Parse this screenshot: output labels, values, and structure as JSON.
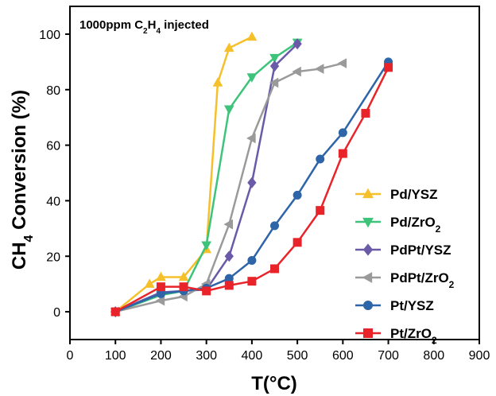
{
  "chart_data": {
    "type": "line",
    "title": "",
    "annotation": {
      "prefix": "1000ppm C",
      "sub": "2",
      "middle": "H",
      "sub2": "4",
      "suffix": " injected"
    },
    "xlabel": "T(°C)",
    "ylabel": {
      "prefix": "CH",
      "sub": "4",
      "suffix": " Conversion (%)"
    },
    "xlim": [
      0,
      900
    ],
    "ylim": [
      -10,
      110
    ],
    "xticks": [
      0,
      100,
      200,
      300,
      400,
      500,
      600,
      700,
      800,
      900
    ],
    "yticks": [
      0,
      20,
      40,
      60,
      80,
      100
    ],
    "grid": false,
    "legend_position": "right",
    "series": [
      {
        "name": "Pd/YSZ",
        "name_main": "Pd/YSZ",
        "name_sub": "",
        "name_after": "",
        "color": "#f5c02a",
        "marker": "triangle-up",
        "x": [
          100,
          175,
          200,
          250,
          300,
          325,
          350,
          400
        ],
        "y": [
          0,
          10,
          12.5,
          12.5,
          22.5,
          82.5,
          95,
          99
        ]
      },
      {
        "name": "Pd/ZrO2",
        "name_main": "Pd/ZrO",
        "name_sub": "2",
        "name_after": "",
        "color": "#3ec47a",
        "marker": "triangle-down",
        "x": [
          100,
          200,
          250,
          300,
          350,
          400,
          450,
          500
        ],
        "y": [
          0,
          6,
          7.5,
          24,
          73,
          84.5,
          91.5,
          97
        ]
      },
      {
        "name": "PdPt/YSZ",
        "name_main": "PdPt/YSZ",
        "name_sub": "",
        "name_after": "",
        "color": "#6a5aa8",
        "marker": "diamond",
        "x": [
          100,
          200,
          250,
          300,
          350,
          400,
          450,
          500
        ],
        "y": [
          0,
          7,
          7.5,
          8,
          20,
          46.5,
          88.5,
          96.5
        ]
      },
      {
        "name": "PdPt/ZrO2",
        "name_main": "PdPt/ZrO",
        "name_sub": "2",
        "name_after": "",
        "color": "#9a9a9a",
        "marker": "triangle-left",
        "x": [
          100,
          200,
          250,
          300,
          350,
          400,
          450,
          500,
          550,
          600
        ],
        "y": [
          0,
          4,
          5.5,
          10,
          31.5,
          62.5,
          82.5,
          86.5,
          87.5,
          89.5
        ]
      },
      {
        "name": "Pt/YSZ",
        "name_main": "Pt/YSZ",
        "name_sub": "",
        "name_after": "",
        "color": "#2e64a8",
        "marker": "circle",
        "x": [
          100,
          200,
          250,
          300,
          350,
          400,
          450,
          500,
          550,
          600,
          700
        ],
        "y": [
          0,
          6.5,
          7.5,
          8.5,
          12,
          18.5,
          31,
          42,
          55,
          64.5,
          90
        ]
      },
      {
        "name": "Pt/ZrO2",
        "name_main": "Pt/ZrO",
        "name_sub": "2",
        "name_after": "",
        "color": "#e8242a",
        "marker": "square",
        "x": [
          100,
          200,
          250,
          300,
          350,
          400,
          450,
          500,
          550,
          600,
          650,
          700
        ],
        "y": [
          0,
          9,
          9,
          7.5,
          9.5,
          11,
          15.5,
          25,
          36.5,
          57,
          71.5,
          88
        ]
      }
    ]
  }
}
